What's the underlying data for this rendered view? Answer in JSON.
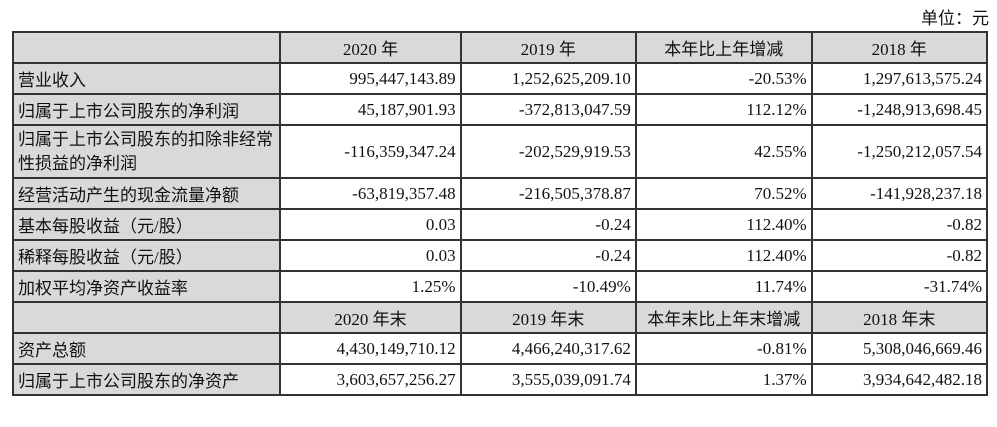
{
  "unit_label": "单位：元",
  "header1": [
    "",
    "2020 年",
    "2019 年",
    "本年比上年增减",
    "2018 年"
  ],
  "rows1": [
    {
      "label": "营业收入",
      "values": [
        "995,447,143.89",
        "1,252,625,209.10",
        "-20.53%",
        "1,297,613,575.24"
      ]
    },
    {
      "label": "归属于上市公司股东的净利润",
      "values": [
        "45,187,901.93",
        "-372,813,047.59",
        "112.12%",
        "-1,248,913,698.45"
      ]
    },
    {
      "label": "归属于上市公司股东的扣除非经常性损益的净利润",
      "values": [
        "-116,359,347.24",
        "-202,529,919.53",
        "42.55%",
        "-1,250,212,057.54"
      ]
    },
    {
      "label": "经营活动产生的现金流量净额",
      "values": [
        "-63,819,357.48",
        "-216,505,378.87",
        "70.52%",
        "-141,928,237.18"
      ]
    },
    {
      "label": "基本每股收益（元/股）",
      "values": [
        "0.03",
        "-0.24",
        "112.40%",
        "-0.82"
      ]
    },
    {
      "label": "稀释每股收益（元/股）",
      "values": [
        "0.03",
        "-0.24",
        "112.40%",
        "-0.82"
      ]
    },
    {
      "label": "加权平均净资产收益率",
      "values": [
        "1.25%",
        "-10.49%",
        "11.74%",
        "-31.74%"
      ]
    }
  ],
  "header2": [
    "",
    "2020 年末",
    "2019 年末",
    "本年末比上年末增减",
    "2018 年末"
  ],
  "rows2": [
    {
      "label": "资产总额",
      "values": [
        "4,430,149,710.12",
        "4,466,240,317.62",
        "-0.81%",
        "5,308,046,669.46"
      ]
    },
    {
      "label": "归属于上市公司股东的净资产",
      "values": [
        "3,603,657,256.27",
        "3,555,039,091.74",
        "1.37%",
        "3,934,642,482.18"
      ]
    }
  ]
}
